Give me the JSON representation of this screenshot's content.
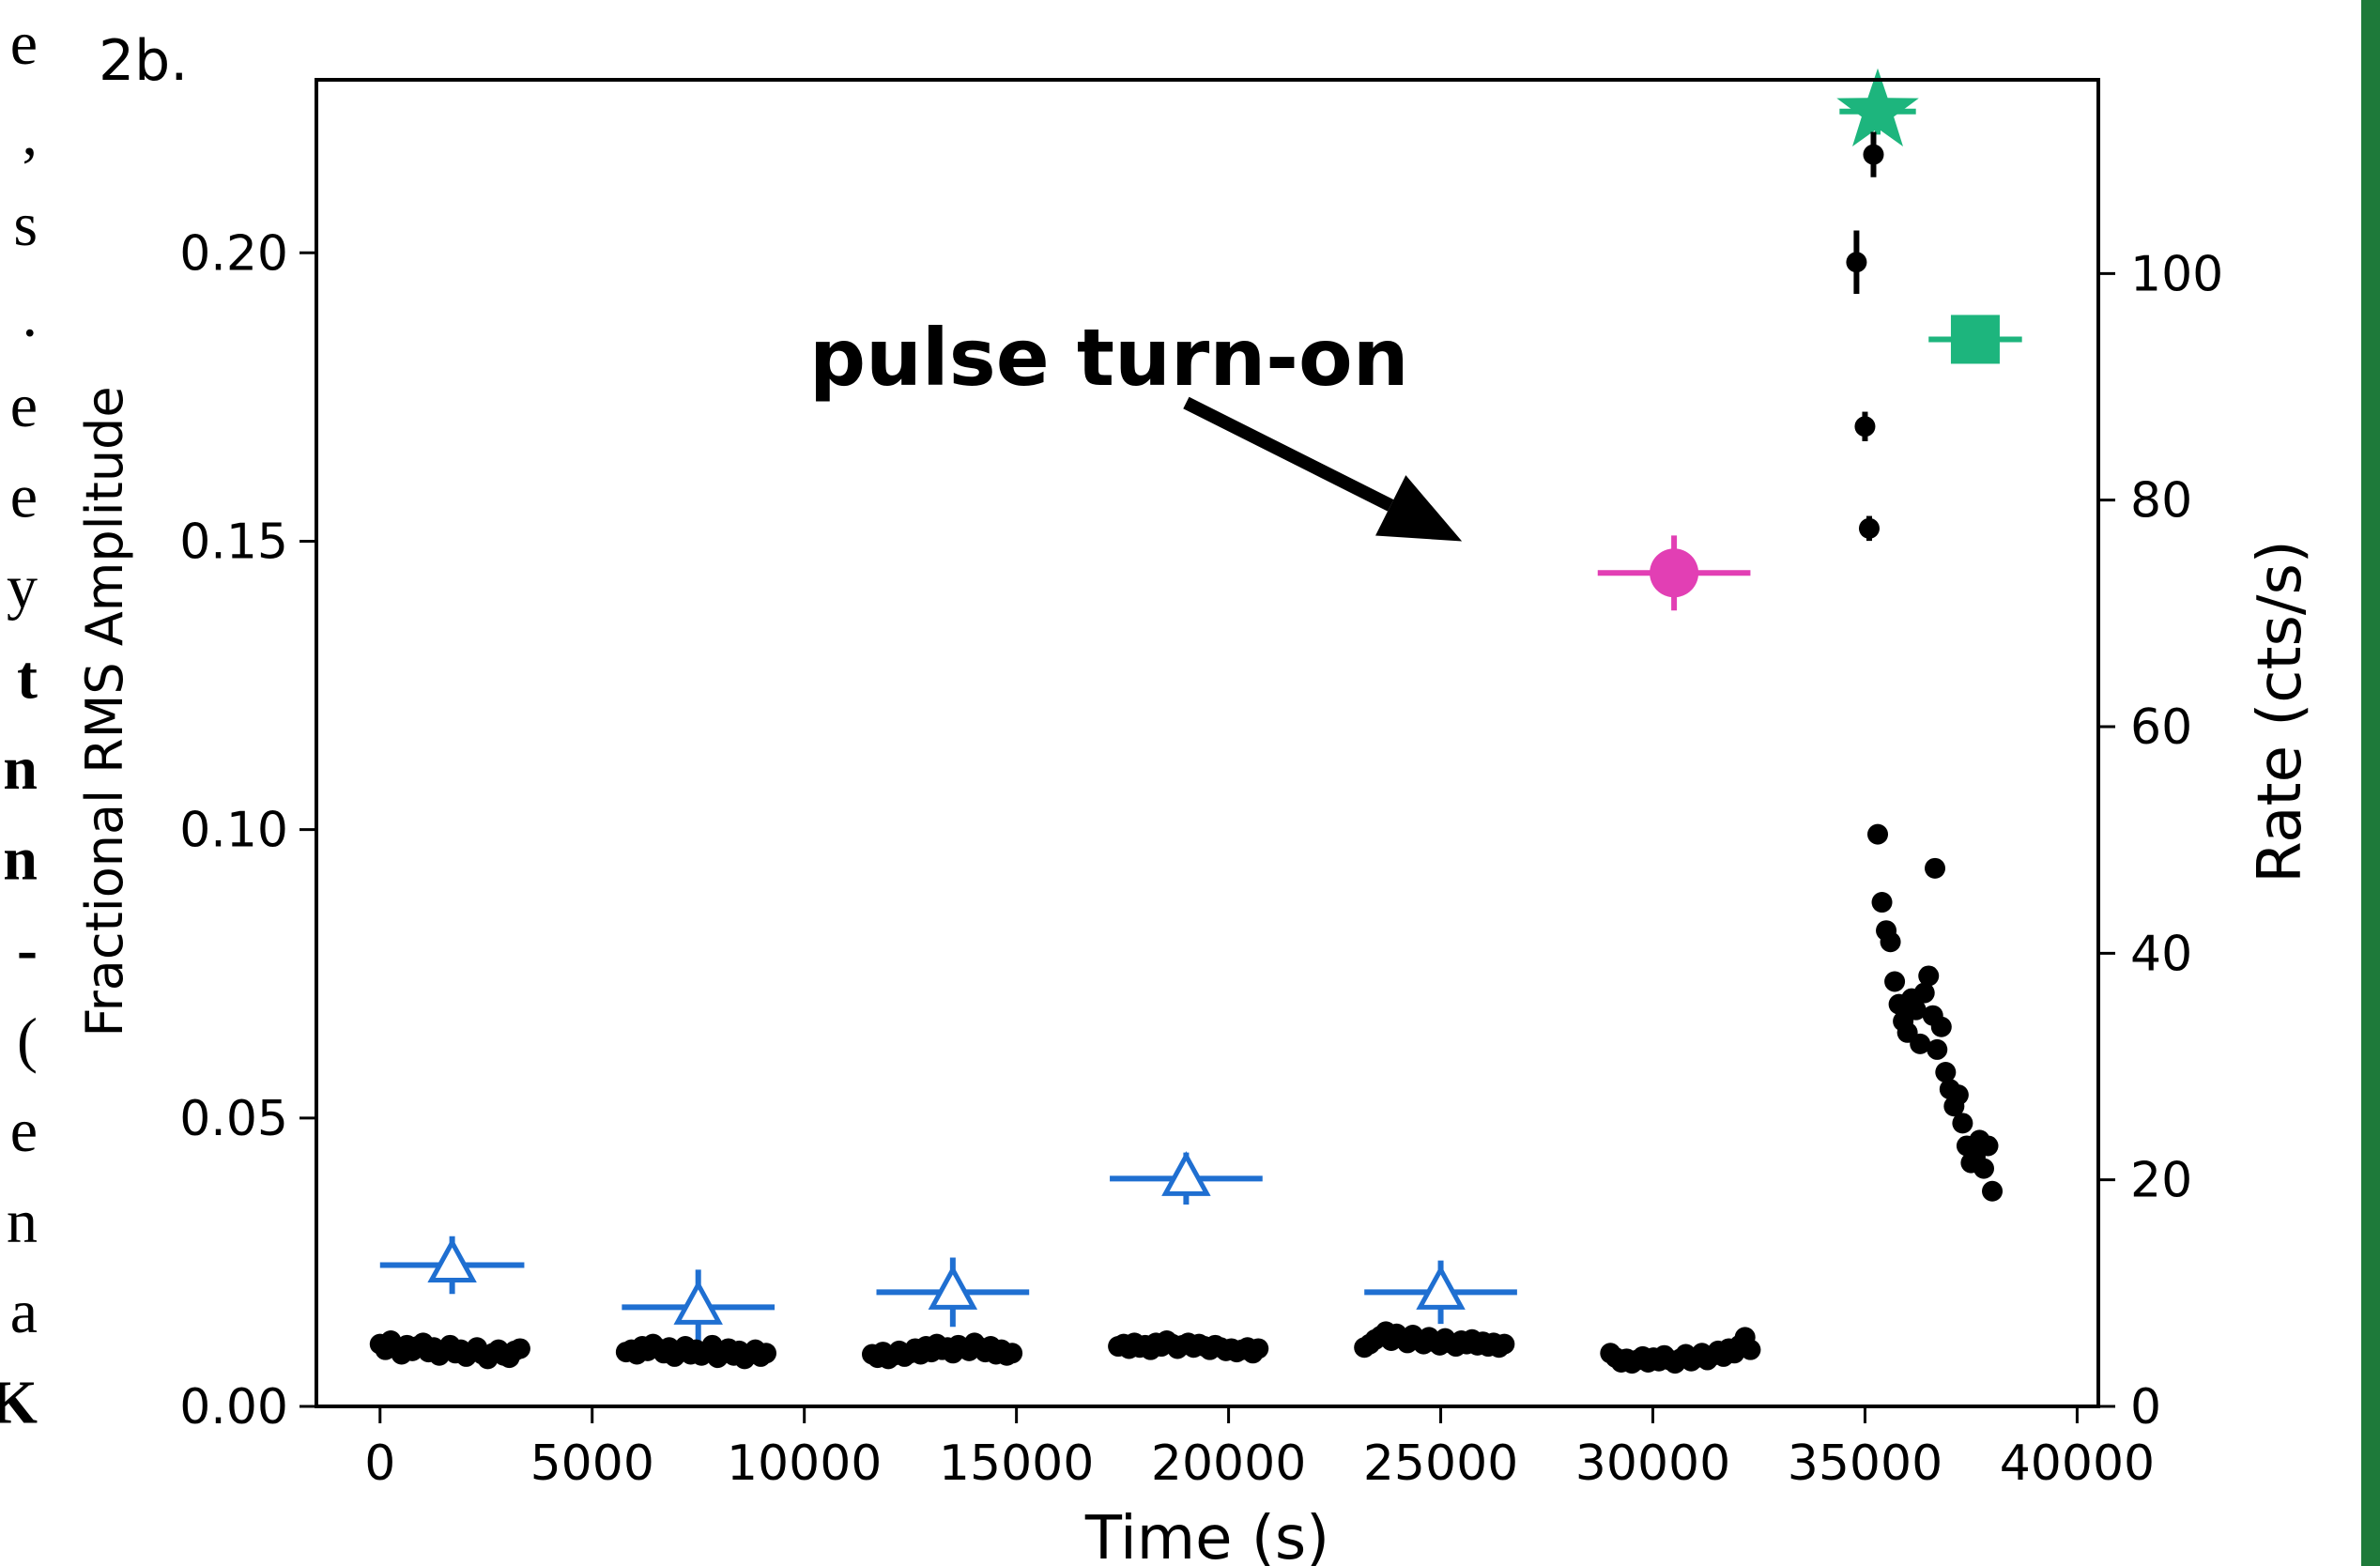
{
  "page_fragments": {
    "left_text": [
      "e",
      ",",
      "s",
      ".",
      "e",
      "e",
      "y",
      "t",
      "n",
      "n",
      "-",
      "(",
      "e",
      "n",
      "a",
      "K"
    ],
    "left_bold": [
      false,
      false,
      false,
      false,
      false,
      false,
      false,
      true,
      true,
      true,
      true,
      false,
      false,
      false,
      false,
      true
    ]
  },
  "colors": {
    "blue": "#1f6fd1",
    "magenta": "#e23fb4",
    "green": "#1db57d",
    "black": "#000000",
    "edge_green": "#1e7a3a"
  },
  "chart_data": {
    "type": "scatter",
    "panel_label": "2b.",
    "xlabel": "Time (s)",
    "ylabel_left": "Fractional RMS Amplitude",
    "ylabel_right": "Rate (cts/s)",
    "xlim": [
      -1500,
      40500
    ],
    "ylim_left": [
      0.0,
      0.23
    ],
    "ylim_right": [
      0,
      117.1
    ],
    "x_ticks": [
      0,
      5000,
      10000,
      15000,
      20000,
      25000,
      30000,
      35000,
      40000
    ],
    "x_tick_labels": [
      "0",
      "5000",
      "10000",
      "15000",
      "20000",
      "25000",
      "30000",
      "35000",
      "40000"
    ],
    "y_left_ticks": [
      0.0,
      0.05,
      0.1,
      0.15,
      0.2
    ],
    "y_left_tick_labels": [
      "0.00",
      "0.05",
      "0.10",
      "0.15",
      "0.20"
    ],
    "y_right_ticks": [
      0,
      20,
      40,
      60,
      80,
      100
    ],
    "y_right_tick_labels": [
      "0",
      "20",
      "40",
      "60",
      "80",
      "100"
    ],
    "annotation": {
      "text": "pulse turn-on",
      "arrow_from": [
        19000,
        0.174
      ],
      "arrow_to": [
        25500,
        0.15
      ]
    },
    "series": [
      {
        "marker": "triangle-open",
        "color": "blue",
        "axis": "left",
        "points": [
          {
            "x": 1700,
            "y": 0.0245,
            "xerr": 1700,
            "yerr": 0.005
          },
          {
            "x": 7500,
            "y": 0.0172,
            "xerr": 1800,
            "yerr": 0.0065
          },
          {
            "x": 13500,
            "y": 0.0198,
            "xerr": 1800,
            "yerr": 0.006
          },
          {
            "x": 19000,
            "y": 0.0395,
            "xerr": 1800,
            "yerr": 0.0045
          },
          {
            "x": 25000,
            "y": 0.0198,
            "xerr": 1800,
            "yerr": 0.0055
          }
        ]
      },
      {
        "marker": "circle",
        "color": "magenta",
        "axis": "left",
        "points": [
          {
            "x": 30500,
            "y": 0.1445,
            "xerr": 1800,
            "yerr": 0.0065
          }
        ]
      },
      {
        "marker": "star",
        "color": "green",
        "axis": "left",
        "points": [
          {
            "x": 35300,
            "y": 0.2245,
            "xerr": 900,
            "yerr": 0.004
          }
        ]
      },
      {
        "marker": "square",
        "color": "green",
        "axis": "left",
        "points": [
          {
            "x": 37600,
            "y": 0.185,
            "xerr": 1100,
            "yerr": 0.003
          }
        ]
      },
      {
        "marker": "dot",
        "color": "black",
        "axis": "right",
        "clusters": [
          {
            "x_start": 0,
            "x_end": 3300,
            "y": [
              5.5,
              5.0,
              5.8,
              5.1,
              4.6,
              5.4,
              4.9,
              5.3,
              5.6,
              4.8,
              5.2,
              4.5,
              4.9,
              5.4,
              4.7,
              5.0,
              4.4,
              4.8,
              5.2,
              4.6,
              4.2,
              4.7,
              5.0,
              4.5,
              4.3,
              4.9,
              5.1
            ]
          },
          {
            "x_start": 5800,
            "x_end": 9100,
            "y": [
              4.8,
              5.0,
              4.6,
              5.3,
              4.9,
              5.5,
              5.1,
              4.7,
              5.2,
              4.4,
              4.9,
              5.3,
              4.6,
              5.0,
              4.5,
              4.8,
              5.4,
              4.3,
              4.7,
              5.1,
              4.5,
              4.9,
              4.2,
              4.6,
              5.0,
              4.4,
              4.7
            ]
          },
          {
            "x_start": 11600,
            "x_end": 14900,
            "y": [
              4.6,
              4.3,
              4.8,
              4.2,
              4.5,
              4.9,
              4.4,
              4.7,
              5.1,
              4.6,
              5.3,
              4.8,
              5.5,
              5.0,
              5.2,
              4.7,
              5.4,
              5.1,
              4.9,
              5.6,
              5.2,
              4.8,
              5.3,
              4.6,
              5.0,
              4.5,
              4.7
            ]
          },
          {
            "x_start": 17400,
            "x_end": 20700,
            "y": [
              5.3,
              5.5,
              5.1,
              5.6,
              5.2,
              5.4,
              5.0,
              5.6,
              5.3,
              5.8,
              5.5,
              5.1,
              5.4,
              5.6,
              5.2,
              5.5,
              5.3,
              5.0,
              5.4,
              5.2,
              4.9,
              5.1,
              4.8,
              5.0,
              5.2,
              4.7,
              5.1
            ]
          },
          {
            "x_start": 23200,
            "x_end": 26500,
            "y": [
              5.2,
              5.5,
              5.9,
              6.2,
              6.6,
              5.8,
              6.4,
              6.0,
              5.6,
              6.3,
              5.9,
              5.5,
              6.1,
              5.7,
              5.4,
              6.0,
              5.6,
              5.3,
              5.8,
              5.5,
              5.9,
              5.4,
              5.7,
              5.3,
              5.6,
              5.2,
              5.5
            ]
          },
          {
            "x_start": 29000,
            "x_end": 32300,
            "y": [
              4.7,
              4.3,
              3.9,
              4.2,
              3.8,
              4.1,
              4.4,
              3.9,
              4.3,
              4.0,
              4.5,
              4.1,
              3.8,
              4.2,
              4.6,
              4.0,
              4.3,
              4.7,
              4.1,
              4.5,
              4.9,
              4.4,
              5.1,
              4.7,
              5.4,
              6.1,
              5.0
            ]
          }
        ],
        "points": [
          {
            "x": 34800,
            "y": 101,
            "yerr": 2.8
          },
          {
            "x": 35000,
            "y": 86.5,
            "yerr": 1.3
          },
          {
            "x": 35100,
            "y": 77.5,
            "yerr": 1.1
          },
          {
            "x": 35200,
            "y": 110.5,
            "yerr": 2.0
          },
          {
            "x": 35300,
            "y": 50.5
          },
          {
            "x": 35400,
            "y": 44.5
          },
          {
            "x": 35500,
            "y": 42.0
          },
          {
            "x": 35600,
            "y": 41.0
          },
          {
            "x": 35700,
            "y": 37.5
          },
          {
            "x": 35800,
            "y": 35.5
          },
          {
            "x": 35900,
            "y": 34.0
          },
          {
            "x": 36000,
            "y": 33.0
          },
          {
            "x": 36100,
            "y": 36.0
          },
          {
            "x": 36200,
            "y": 35.0
          },
          {
            "x": 36300,
            "y": 32.0
          },
          {
            "x": 36400,
            "y": 36.5
          },
          {
            "x": 36500,
            "y": 38.0
          },
          {
            "x": 36600,
            "y": 34.5
          },
          {
            "x": 36650,
            "y": 47.5
          },
          {
            "x": 36700,
            "y": 31.5
          },
          {
            "x": 36800,
            "y": 33.5
          },
          {
            "x": 36900,
            "y": 29.5
          },
          {
            "x": 37000,
            "y": 28.0
          },
          {
            "x": 37100,
            "y": 26.5
          },
          {
            "x": 37200,
            "y": 27.5
          },
          {
            "x": 37300,
            "y": 25.0
          },
          {
            "x": 37400,
            "y": 23.0
          },
          {
            "x": 37500,
            "y": 21.5
          },
          {
            "x": 37600,
            "y": 22.0
          },
          {
            "x": 37700,
            "y": 23.5
          },
          {
            "x": 37800,
            "y": 21.0
          },
          {
            "x": 37900,
            "y": 23.0
          },
          {
            "x": 38000,
            "y": 19.0
          }
        ]
      }
    ]
  }
}
